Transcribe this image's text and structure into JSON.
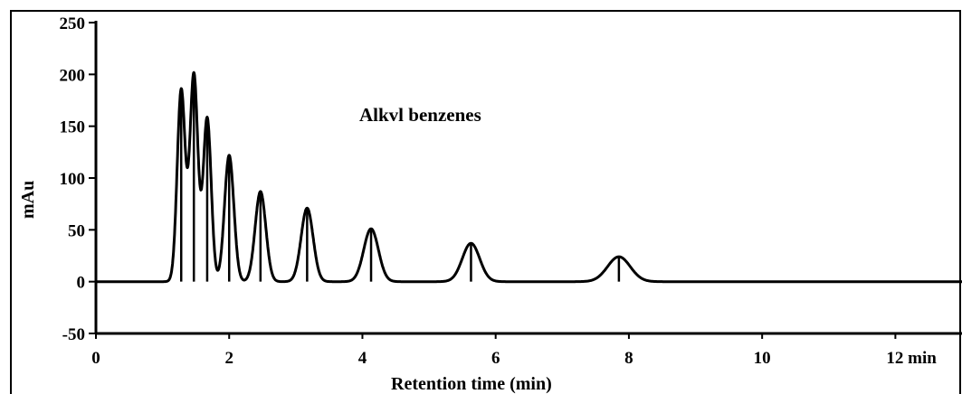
{
  "chart_data": {
    "type": "line",
    "annotation": "Alkvl benzenes",
    "xlabel": "Retention time (min)",
    "ylabel": "mAu",
    "xlim": [
      0,
      13
    ],
    "ylim": [
      -50,
      250
    ],
    "x_ticks": [
      0,
      2,
      4,
      6,
      8,
      10,
      12
    ],
    "x_tick_labels": [
      "0",
      "2",
      "4",
      "6",
      "8",
      "10",
      "12 min"
    ],
    "y_ticks": [
      250,
      200,
      150,
      100,
      50,
      0,
      -50
    ],
    "y_tick_labels": [
      "250",
      "200",
      "150",
      "100",
      "50",
      "0",
      "-50"
    ],
    "grid": false,
    "baseline": 0,
    "peaks": [
      {
        "x": 1.28,
        "y": 185,
        "width": 0.06
      },
      {
        "x": 1.47,
        "y": 200,
        "width": 0.06
      },
      {
        "x": 1.67,
        "y": 158,
        "width": 0.06
      },
      {
        "x": 2.0,
        "y": 122,
        "width": 0.07
      },
      {
        "x": 2.47,
        "y": 87,
        "width": 0.08
      },
      {
        "x": 3.17,
        "y": 71,
        "width": 0.09
      },
      {
        "x": 4.13,
        "y": 51,
        "width": 0.11
      },
      {
        "x": 5.63,
        "y": 37,
        "width": 0.13
      },
      {
        "x": 7.85,
        "y": 24,
        "width": 0.17
      }
    ]
  }
}
